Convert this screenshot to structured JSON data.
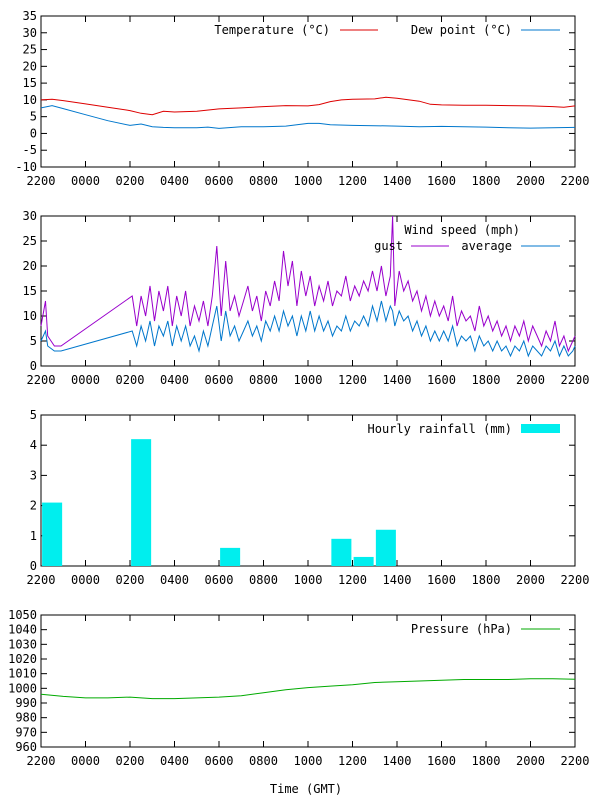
{
  "xlabel": "Time (GMT)",
  "x_ticks": [
    "2200",
    "0000",
    "0200",
    "0400",
    "0600",
    "0800",
    "1000",
    "1200",
    "1400",
    "1600",
    "1800",
    "2000",
    "2200"
  ],
  "colors": {
    "temperature": "#dd0000",
    "dew_point": "#0077cc",
    "gust": "#9900cc",
    "average": "#0077cc",
    "rainfall": "#00eeee",
    "pressure": "#00aa00"
  },
  "chart_data": [
    {
      "id": "temperature",
      "type": "line",
      "title": "",
      "xlabel": "",
      "ylabel": "",
      "xlim": [
        -2,
        22
      ],
      "ylim": [
        -10,
        35
      ],
      "y_ticks": [
        "-10",
        "-5",
        "0",
        "5",
        "10",
        "15",
        "20",
        "25",
        "30",
        "35"
      ],
      "legend_position": "top-right",
      "series": [
        {
          "name": "Temperature (°C)",
          "color": "#dd0000",
          "x": [
            -2,
            -1.5,
            -1,
            0,
            1,
            2,
            2.5,
            3,
            3.5,
            4,
            5,
            6,
            7,
            8,
            9,
            10,
            10.5,
            11,
            11.5,
            12,
            13,
            13.5,
            14,
            15,
            15.5,
            16,
            17,
            18,
            19,
            20,
            21,
            21.5,
            22
          ],
          "y": [
            10,
            10.2,
            9.8,
            8.8,
            7.8,
            6.8,
            6,
            5.6,
            6.6,
            6.4,
            6.6,
            7.3,
            7.6,
            8,
            8.3,
            8.2,
            8.6,
            9.5,
            10,
            10.2,
            10.3,
            10.8,
            10.5,
            9.6,
            8.7,
            8.5,
            8.4,
            8.4,
            8.3,
            8.2,
            8,
            7.8,
            8.2
          ]
        },
        {
          "name": "Dew point (°C)",
          "color": "#0077cc",
          "x": [
            -2,
            -1.5,
            -1,
            0,
            1,
            2,
            2.5,
            3,
            3.5,
            4,
            5,
            5.5,
            6,
            7,
            8,
            9,
            10,
            10.5,
            11,
            12,
            13,
            14,
            15,
            16,
            17,
            18,
            19,
            20,
            21,
            22
          ],
          "y": [
            7.6,
            8.3,
            7.4,
            5.6,
            3.8,
            2.4,
            2.8,
            2,
            1.8,
            1.7,
            1.7,
            1.9,
            1.5,
            2,
            2,
            2.2,
            3,
            3,
            2.6,
            2.4,
            2.3,
            2.2,
            2,
            2.1,
            2,
            1.9,
            1.7,
            1.6,
            1.7,
            1.8
          ]
        }
      ]
    },
    {
      "id": "wind",
      "type": "line",
      "title": "Wind speed (mph)",
      "xlabel": "",
      "ylabel": "",
      "xlim": [
        -2,
        22
      ],
      "ylim": [
        0,
        30
      ],
      "y_ticks": [
        "0",
        "5",
        "10",
        "15",
        "20",
        "25",
        "30"
      ],
      "legend_position": "top-right",
      "series": [
        {
          "name": "gust",
          "color": "#9900cc",
          "x": [
            -2,
            -1.8,
            -1.7,
            -1.4,
            -1.1,
            2.1,
            2.3,
            2.5,
            2.7,
            2.9,
            3.1,
            3.3,
            3.5,
            3.7,
            3.9,
            4.1,
            4.3,
            4.5,
            4.7,
            4.9,
            5.1,
            5.3,
            5.5,
            5.7,
            5.9,
            6.1,
            6.3,
            6.5,
            6.7,
            6.9,
            7.1,
            7.3,
            7.5,
            7.7,
            7.9,
            8.1,
            8.3,
            8.5,
            8.7,
            8.9,
            9.1,
            9.3,
            9.5,
            9.7,
            9.9,
            10.1,
            10.3,
            10.5,
            10.7,
            10.9,
            11.1,
            11.3,
            11.5,
            11.7,
            11.9,
            12.1,
            12.3,
            12.5,
            12.7,
            12.9,
            13.1,
            13.3,
            13.5,
            13.7,
            13.8,
            13.9,
            14.1,
            14.3,
            14.5,
            14.7,
            14.9,
            15.1,
            15.3,
            15.5,
            15.7,
            15.9,
            16.1,
            16.3,
            16.5,
            16.7,
            16.9,
            17.1,
            17.3,
            17.5,
            17.7,
            17.9,
            18.1,
            18.3,
            18.5,
            18.7,
            18.9,
            19.1,
            19.3,
            19.5,
            19.7,
            19.9,
            20.1,
            20.3,
            20.5,
            20.7,
            20.9,
            21.1,
            21.3,
            21.5,
            21.7,
            21.9,
            22
          ],
          "y": [
            8,
            13,
            6,
            4,
            4,
            14,
            8,
            14,
            10,
            16,
            9,
            15,
            11,
            16,
            8,
            14,
            10,
            15,
            8,
            12,
            9,
            13,
            8,
            14,
            24,
            10,
            21,
            11,
            14,
            10,
            13,
            16,
            11,
            14,
            9,
            15,
            12,
            17,
            13,
            23,
            16,
            21,
            12,
            19,
            14,
            18,
            12,
            16,
            13,
            17,
            12,
            15,
            14,
            18,
            13,
            16,
            14,
            17,
            15,
            19,
            15,
            20,
            14,
            18,
            30,
            12,
            19,
            15,
            17,
            13,
            15,
            11,
            14,
            10,
            13,
            10,
            12,
            9,
            14,
            8,
            11,
            9,
            10,
            7,
            12,
            8,
            10,
            7,
            9,
            6,
            8,
            5,
            8,
            6,
            9,
            5,
            8,
            6,
            4,
            7,
            5,
            9,
            4,
            6,
            3,
            5,
            6
          ],
          "note": ""
        },
        {
          "name": "average",
          "color": "#0077cc",
          "x": [
            -2,
            -1.8,
            -1.7,
            -1.4,
            -1.1,
            2.1,
            2.3,
            2.5,
            2.7,
            2.9,
            3.1,
            3.3,
            3.5,
            3.7,
            3.9,
            4.1,
            4.3,
            4.5,
            4.7,
            4.9,
            5.1,
            5.3,
            5.5,
            5.7,
            5.9,
            6.1,
            6.3,
            6.5,
            6.7,
            6.9,
            7.1,
            7.3,
            7.5,
            7.7,
            7.9,
            8.1,
            8.3,
            8.5,
            8.7,
            8.9,
            9.1,
            9.3,
            9.5,
            9.7,
            9.9,
            10.1,
            10.3,
            10.5,
            10.7,
            10.9,
            11.1,
            11.3,
            11.5,
            11.7,
            11.9,
            12.1,
            12.3,
            12.5,
            12.7,
            12.9,
            13.1,
            13.3,
            13.5,
            13.7,
            13.8,
            13.9,
            14.1,
            14.3,
            14.5,
            14.7,
            14.9,
            15.1,
            15.3,
            15.5,
            15.7,
            15.9,
            16.1,
            16.3,
            16.5,
            16.7,
            16.9,
            17.1,
            17.3,
            17.5,
            17.7,
            17.9,
            18.1,
            18.3,
            18.5,
            18.7,
            18.9,
            19.1,
            19.3,
            19.5,
            19.7,
            19.9,
            20.1,
            20.3,
            20.5,
            20.7,
            20.9,
            21.1,
            21.3,
            21.5,
            21.7,
            21.9,
            22
          ],
          "y": [
            5,
            7,
            4,
            3,
            3,
            7,
            4,
            8,
            5,
            9,
            4,
            8,
            6,
            9,
            4,
            8,
            5,
            8,
            4,
            6,
            3,
            7,
            4,
            8,
            12,
            5,
            11,
            6,
            8,
            5,
            7,
            9,
            6,
            8,
            5,
            9,
            7,
            10,
            7,
            11,
            8,
            10,
            6,
            10,
            7,
            11,
            7,
            10,
            7,
            9,
            6,
            8,
            7,
            10,
            7,
            9,
            8,
            10,
            8,
            12,
            9,
            13,
            9,
            12,
            11,
            8,
            11,
            9,
            10,
            7,
            9,
            6,
            8,
            5,
            7,
            5,
            7,
            5,
            8,
            4,
            6,
            5,
            6,
            3,
            6,
            4,
            5,
            3,
            5,
            3,
            4,
            2,
            4,
            3,
            5,
            2,
            4,
            3,
            2,
            4,
            3,
            5,
            2,
            4,
            2,
            3,
            4
          ]
        }
      ]
    },
    {
      "id": "rainfall",
      "type": "bar",
      "title": "",
      "xlabel": "",
      "ylabel": "",
      "xlim": [
        -2,
        22
      ],
      "ylim": [
        0,
        5
      ],
      "y_ticks": [
        "0",
        "1",
        "2",
        "3",
        "4",
        "5"
      ],
      "legend_position": "top-right",
      "series": [
        {
          "name": "Hourly rainfall (mm)",
          "color": "#00eeee",
          "x": [
            -1.5,
            2.5,
            6.5,
            11.5,
            12.5,
            13.5
          ],
          "values": [
            2.1,
            4.2,
            0.6,
            0.9,
            0.3,
            1.2
          ]
        }
      ]
    },
    {
      "id": "pressure",
      "type": "line",
      "title": "",
      "xlabel": "Time (GMT)",
      "ylabel": "",
      "xlim": [
        -2,
        22
      ],
      "ylim": [
        960,
        1050
      ],
      "y_ticks": [
        "960",
        "970",
        "980",
        "990",
        "1000",
        "1010",
        "1020",
        "1030",
        "1040",
        "1050"
      ],
      "legend_position": "top-right",
      "series": [
        {
          "name": "Pressure (hPa)",
          "color": "#00aa00",
          "x": [
            -2,
            -1,
            0,
            1,
            2,
            3,
            4,
            5,
            6,
            7,
            8,
            9,
            10,
            11,
            12,
            13,
            14,
            15,
            16,
            17,
            18,
            19,
            20,
            21,
            22
          ],
          "y": [
            996,
            994.5,
            993.5,
            993.5,
            994,
            993,
            993,
            993.5,
            994,
            995,
            997,
            999,
            1000.5,
            1001.5,
            1002.5,
            1004,
            1004.5,
            1005,
            1005.5,
            1006,
            1006,
            1006,
            1006.5,
            1006.5,
            1006.2
          ]
        }
      ]
    }
  ]
}
